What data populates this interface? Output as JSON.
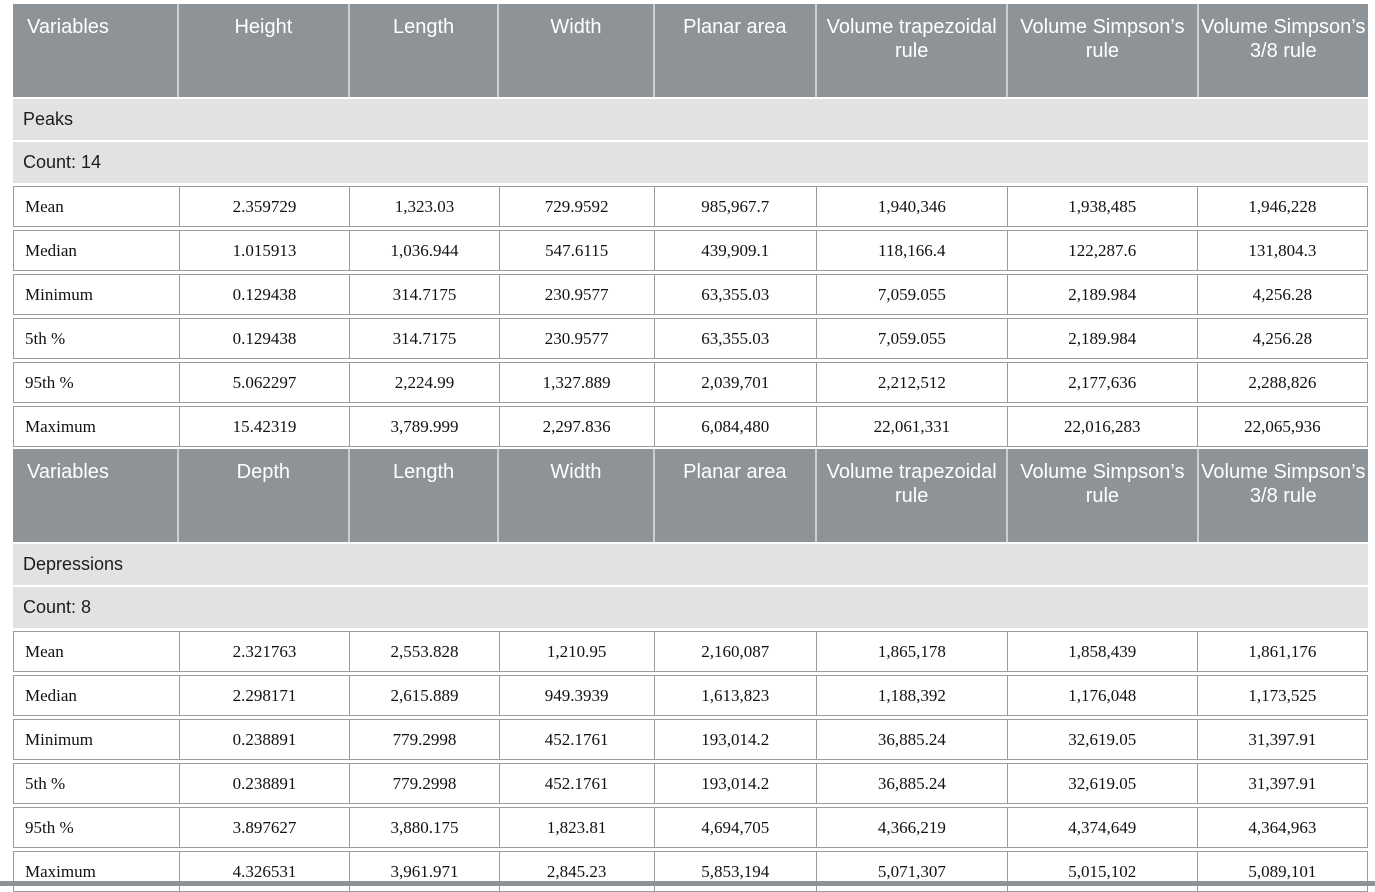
{
  "colors": {
    "header_bg": "#8e9397",
    "band_bg": "#e1e2e3",
    "grid_line": "#9b9b9b",
    "header_text": "#ffffff",
    "body_text": "#111111",
    "bottom_rule": "#8e9397"
  },
  "table": {
    "sections": [
      {
        "headers": [
          "Variables",
          "Height",
          "Length",
          "Width",
          "Planar area",
          "Volume trapezoidal rule",
          "Volume Simpson’s rule",
          "Volume Simpson’s 3/8 rule"
        ],
        "group_label": "Peaks",
        "count_label": "Count: 14",
        "rows": [
          {
            "label": "Mean",
            "values": [
              "2.359729",
              "1,323.03",
              "729.9592",
              "985,967.7",
              "1,940,346",
              "1,938,485",
              "1,946,228"
            ]
          },
          {
            "label": "Median",
            "values": [
              "1.015913",
              "1,036.944",
              "547.6115",
              "439,909.1",
              "118,166.4",
              "122,287.6",
              "131,804.3"
            ]
          },
          {
            "label": "Minimum",
            "values": [
              "0.129438",
              "314.7175",
              "230.9577",
              "63,355.03",
              "7,059.055",
              "2,189.984",
              "4,256.28"
            ]
          },
          {
            "label": "5th %",
            "values": [
              "0.129438",
              "314.7175",
              "230.9577",
              "63,355.03",
              "7,059.055",
              "2,189.984",
              "4,256.28"
            ]
          },
          {
            "label": "95th %",
            "values": [
              "5.062297",
              "2,224.99",
              "1,327.889",
              "2,039,701",
              "2,212,512",
              "2,177,636",
              "2,288,826"
            ]
          },
          {
            "label": "Maximum",
            "values": [
              "15.42319",
              "3,789.999",
              "2,297.836",
              "6,084,480",
              "22,061,331",
              "22,016,283",
              "22,065,936"
            ]
          }
        ]
      },
      {
        "headers": [
          "Variables",
          "Depth",
          "Length",
          "Width",
          "Planar area",
          "Volume trapezoidal rule",
          "Volume Simpson’s rule",
          "Volume Simpson’s 3/8 rule"
        ],
        "group_label": "Depressions",
        "count_label": "Count: 8",
        "rows": [
          {
            "label": "Mean",
            "values": [
              "2.321763",
              "2,553.828",
              "1,210.95",
              "2,160,087",
              "1,865,178",
              "1,858,439",
              "1,861,176"
            ]
          },
          {
            "label": "Median",
            "values": [
              "2.298171",
              "2,615.889",
              "949.3939",
              "1,613,823",
              "1,188,392",
              "1,176,048",
              "1,173,525"
            ]
          },
          {
            "label": "Minimum",
            "values": [
              "0.238891",
              "779.2998",
              "452.1761",
              "193,014.2",
              "36,885.24",
              "32,619.05",
              "31,397.91"
            ]
          },
          {
            "label": "5th %",
            "values": [
              "0.238891",
              "779.2998",
              "452.1761",
              "193,014.2",
              "36,885.24",
              "32,619.05",
              "31,397.91"
            ]
          },
          {
            "label": "95th %",
            "values": [
              "3.897627",
              "3,880.175",
              "1,823.81",
              "4,694,705",
              "4,366,219",
              "4,374,649",
              "4,364,963"
            ]
          },
          {
            "label": "Maximum",
            "values": [
              "4.326531",
              "3,961.971",
              "2,845.23",
              "5,853,194",
              "5,071,307",
              "5,015,102",
              "5,089,101"
            ]
          }
        ]
      }
    ]
  }
}
